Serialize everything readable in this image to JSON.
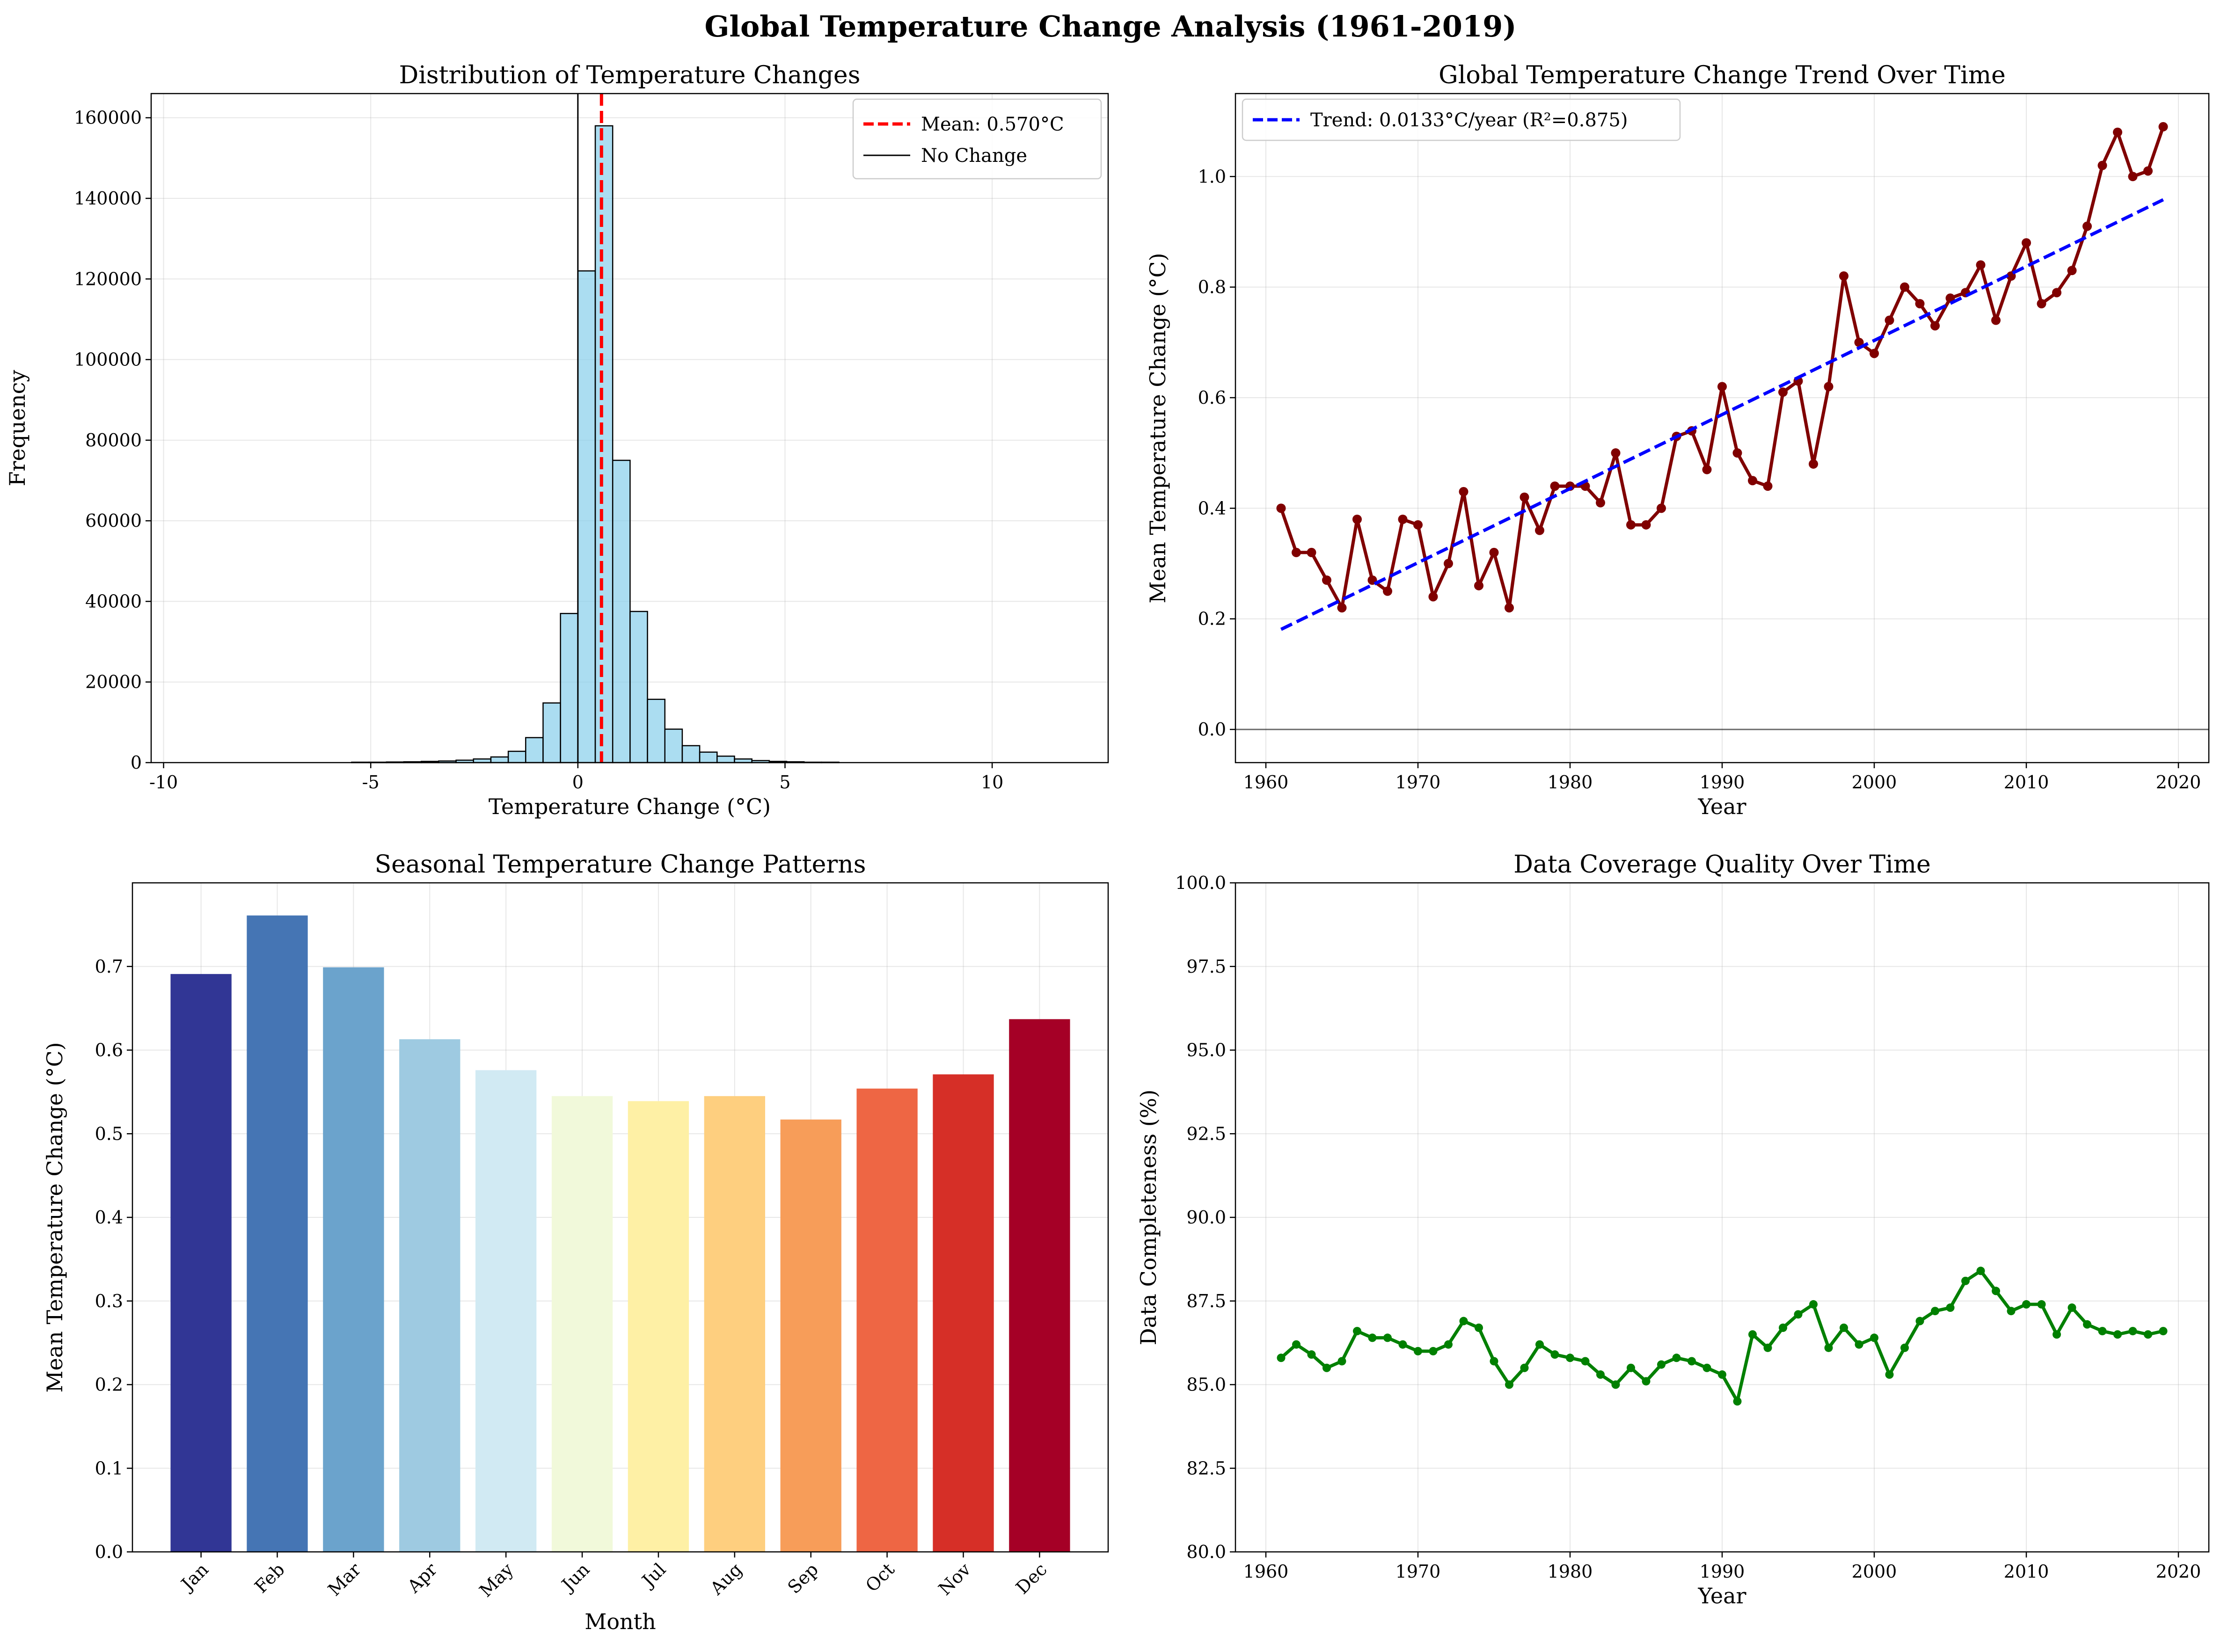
{
  "figure": {
    "title": "Global Temperature Change Analysis (1961-2019)"
  },
  "chart_data": [
    {
      "type": "bar",
      "subtype": "histogram",
      "title": "Distribution of Temperature Changes",
      "xlabel": "Temperature Change (°C)",
      "ylabel": "Frequency",
      "xlim": [
        -10.3,
        12.8
      ],
      "ylim": [
        0,
        166000
      ],
      "xticks": [
        -10,
        -5,
        0,
        5,
        10
      ],
      "yticks": [
        0,
        20000,
        40000,
        60000,
        80000,
        100000,
        120000,
        140000,
        160000
      ],
      "grid": true,
      "bar_color": "#87CEEB",
      "bin_width": 0.42,
      "bin_centers": [
        -5.25,
        -4.83,
        -4.41,
        -3.99,
        -3.57,
        -3.15,
        -2.73,
        -2.31,
        -1.89,
        -1.47,
        -1.05,
        -0.63,
        -0.21,
        0.21,
        0.63,
        1.05,
        1.47,
        1.89,
        2.31,
        2.73,
        3.15,
        3.57,
        3.99,
        4.41,
        4.83,
        5.25,
        5.67,
        6.09
      ],
      "values": [
        100,
        100,
        150,
        200,
        300,
        400,
        600,
        900,
        1400,
        2800,
        6200,
        14800,
        37000,
        122000,
        158000,
        75000,
        37500,
        15700,
        8300,
        4200,
        2600,
        1600,
        900,
        500,
        300,
        200,
        100,
        100
      ],
      "mean_line": {
        "value": 0.57,
        "label": "Mean: 0.570°C",
        "color": "#FF0000"
      },
      "zero_line": {
        "value": 0,
        "label": "No Change",
        "color": "#000000"
      },
      "legend": "top-right"
    },
    {
      "type": "line",
      "title": "Global Temperature Change Trend Over Time",
      "xlabel": "Year",
      "ylabel": "Mean Temperature Change (°C)",
      "xlim": [
        1958,
        2022
      ],
      "ylim": [
        -0.06,
        1.15
      ],
      "xticks": [
        1960,
        1970,
        1980,
        1990,
        2000,
        2010,
        2020
      ],
      "yticks": [
        0.0,
        0.2,
        0.4,
        0.6,
        0.8,
        1.0
      ],
      "ytick_labels": [
        "0.0",
        "0.2",
        "0.4",
        "0.6",
        "0.8",
        "1.0"
      ],
      "grid": true,
      "x": [
        1961,
        1962,
        1963,
        1964,
        1965,
        1966,
        1967,
        1968,
        1969,
        1970,
        1971,
        1972,
        1973,
        1974,
        1975,
        1976,
        1977,
        1978,
        1979,
        1980,
        1981,
        1982,
        1983,
        1984,
        1985,
        1986,
        1987,
        1988,
        1989,
        1990,
        1991,
        1992,
        1993,
        1994,
        1995,
        1996,
        1997,
        1998,
        1999,
        2000,
        2001,
        2002,
        2003,
        2004,
        2005,
        2006,
        2007,
        2008,
        2009,
        2010,
        2011,
        2012,
        2013,
        2014,
        2015,
        2016,
        2017,
        2018,
        2019
      ],
      "series": [
        {
          "values": [
            0.4,
            0.32,
            0.32,
            0.27,
            0.22,
            0.38,
            0.27,
            0.25,
            0.38,
            0.37,
            0.24,
            0.3,
            0.43,
            0.26,
            0.32,
            0.22,
            0.42,
            0.36,
            0.44,
            0.44,
            0.44,
            0.41,
            0.5,
            0.37,
            0.37,
            0.4,
            0.53,
            0.54,
            0.47,
            0.62,
            0.5,
            0.45,
            0.44,
            0.61,
            0.63,
            0.48,
            0.62,
            0.82,
            0.7,
            0.68,
            0.74,
            0.8,
            0.77,
            0.73,
            0.78,
            0.79,
            0.84,
            0.74,
            0.82,
            0.88,
            0.77,
            0.79,
            0.83,
            0.91,
            1.02,
            1.08,
            1.0,
            1.01,
            1.09
          ],
          "color": "#800000"
        },
        {
          "name": "Trend: 0.0133°C/year (R²=0.875)",
          "type": "trend",
          "x": [
            1961,
            2019
          ],
          "values": [
            0.181,
            0.958
          ],
          "color": "#0000FF"
        }
      ],
      "zero_line": {
        "value": 0,
        "color": "#000000"
      },
      "legend": "top-left"
    },
    {
      "type": "bar",
      "title": "Seasonal Temperature Change Patterns",
      "xlabel": "Month",
      "ylabel": "Mean Temperature Change (°C)",
      "ylim": [
        0,
        0.8
      ],
      "yticks": [
        0.0,
        0.1,
        0.2,
        0.3,
        0.4,
        0.5,
        0.6,
        0.7
      ],
      "ytick_labels": [
        "0.0",
        "0.1",
        "0.2",
        "0.3",
        "0.4",
        "0.5",
        "0.6",
        "0.7"
      ],
      "grid": true,
      "categories": [
        "Jan",
        "Feb",
        "Mar",
        "Apr",
        "May",
        "Jun",
        "Jul",
        "Aug",
        "Sep",
        "Oct",
        "Nov",
        "Dec"
      ],
      "values": [
        0.691,
        0.761,
        0.699,
        0.613,
        0.576,
        0.545,
        0.539,
        0.545,
        0.517,
        0.554,
        0.571,
        0.637
      ],
      "colors": [
        "#313695",
        "#4575B4",
        "#6BA3CC",
        "#9ECAE1",
        "#D1EAF3",
        "#F1F9DA",
        "#FEF0A5",
        "#FECF7F",
        "#F79D59",
        "#EE6644",
        "#D62F27",
        "#A50026"
      ]
    },
    {
      "type": "line",
      "title": "Data Coverage Quality Over Time",
      "xlabel": "Year",
      "ylabel": "Data Completeness (%)",
      "xlim": [
        1958,
        2022
      ],
      "ylim": [
        80,
        100
      ],
      "xticks": [
        1960,
        1970,
        1980,
        1990,
        2000,
        2010,
        2020
      ],
      "yticks": [
        80.0,
        82.5,
        85.0,
        87.5,
        90.0,
        92.5,
        95.0,
        97.5,
        100.0
      ],
      "ytick_labels": [
        "80.0",
        "82.5",
        "85.0",
        "87.5",
        "90.0",
        "92.5",
        "95.0",
        "97.5",
        "100.0"
      ],
      "grid": true,
      "x": [
        1961,
        1962,
        1963,
        1964,
        1965,
        1966,
        1967,
        1968,
        1969,
        1970,
        1971,
        1972,
        1973,
        1974,
        1975,
        1976,
        1977,
        1978,
        1979,
        1980,
        1981,
        1982,
        1983,
        1984,
        1985,
        1986,
        1987,
        1988,
        1989,
        1990,
        1991,
        1992,
        1993,
        1994,
        1995,
        1996,
        1997,
        1998,
        1999,
        2000,
        2001,
        2002,
        2003,
        2004,
        2005,
        2006,
        2007,
        2008,
        2009,
        2010,
        2011,
        2012,
        2013,
        2014,
        2015,
        2016,
        2017,
        2018,
        2019
      ],
      "series": [
        {
          "values": [
            85.8,
            86.2,
            85.9,
            85.5,
            85.7,
            86.6,
            86.4,
            86.4,
            86.2,
            86.0,
            86.0,
            86.2,
            86.9,
            86.7,
            85.7,
            85.0,
            85.5,
            86.2,
            85.9,
            85.8,
            85.7,
            85.3,
            85.0,
            85.5,
            85.1,
            85.6,
            85.8,
            85.7,
            85.5,
            85.3,
            84.5,
            86.5,
            86.1,
            86.7,
            87.1,
            87.4,
            86.1,
            86.7,
            86.2,
            86.4,
            85.3,
            86.1,
            86.9,
            87.2,
            87.3,
            88.1,
            88.4,
            87.8,
            87.2,
            87.4,
            87.4,
            86.5,
            87.3,
            86.8,
            86.6,
            86.5,
            86.6,
            86.5,
            86.6
          ],
          "color": "#008000"
        }
      ]
    }
  ]
}
